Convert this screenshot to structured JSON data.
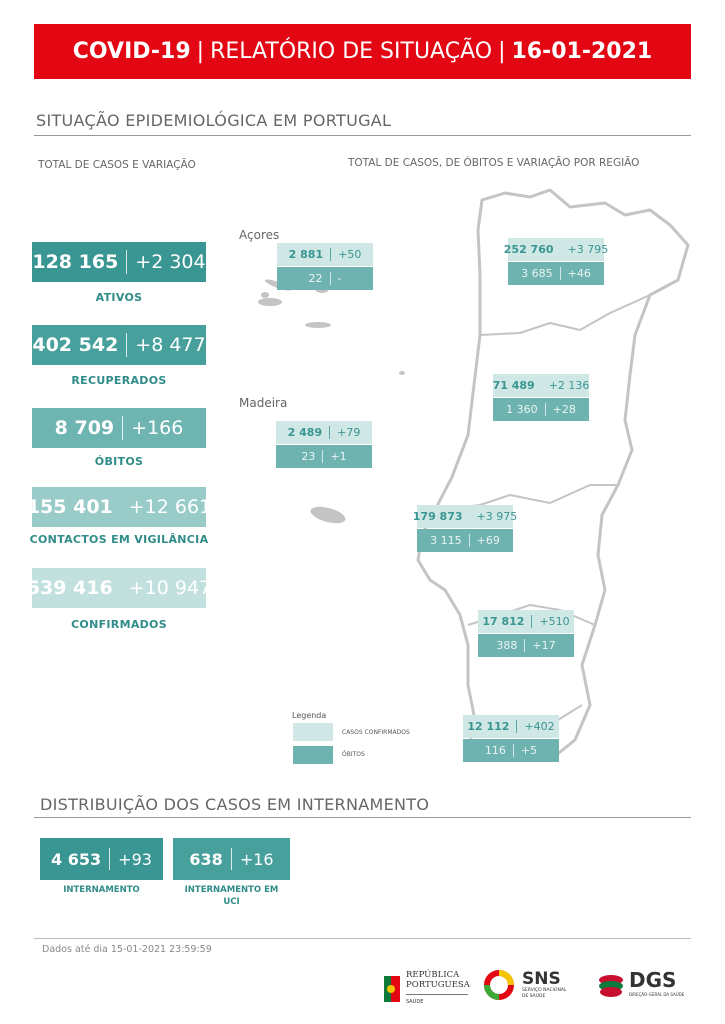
{
  "header": {
    "title_bold": "COVID-19",
    "title_middle": "RELATÓRIO DE SITUAÇÃO",
    "date": "16-01-2021",
    "separator": "|",
    "color": "#e30613"
  },
  "section1": {
    "title": "SITUAÇÃO EPIDEMIOLÓGICA EM PORTUGAL",
    "left_subtitle": "TOTAL DE CASOS E VARIAÇÃO",
    "right_subtitle": "TOTAL DE CASOS, DE ÓBITOS E VARIAÇÃO POR REGIÃO"
  },
  "kpis": [
    {
      "value": "128 165",
      "delta": "+2 304",
      "label": "ATIVOS",
      "color": "#3a9692"
    },
    {
      "value": "402 542",
      "delta": "+8 477",
      "label": "RECUPERADOS",
      "color": "#47a09c"
    },
    {
      "value": "8 709",
      "delta": "+166",
      "label": "ÓBITOS",
      "color": "#6eb5b2"
    },
    {
      "value": "155 401",
      "delta": "+12 661",
      "label": "CONTACTOS EM VIGILÂNCIA",
      "color": "#99cbc8"
    },
    {
      "value": "539 416",
      "delta": "+10 947",
      "label": "CONFIRMADOS",
      "color": "#c2e0de"
    }
  ],
  "regions": [
    {
      "name": "Açores",
      "cases": "2 881",
      "cases_delta": "+50",
      "deaths": "22",
      "deaths_delta": "-"
    },
    {
      "name": "Madeira",
      "cases": "2 489",
      "cases_delta": "+79",
      "deaths": "23",
      "deaths_delta": "+1"
    },
    {
      "cases": "252 760",
      "cases_delta": "+3 795",
      "deaths": "3 685",
      "deaths_delta": "+46"
    },
    {
      "cases": "71 489",
      "cases_delta": "+2 136",
      "deaths": "1 360",
      "deaths_delta": "+28"
    },
    {
      "cases": "179 873",
      "cases_delta": "+3 975",
      "deaths": "3 115",
      "deaths_delta": "+69"
    },
    {
      "cases": "17 812",
      "cases_delta": "+510",
      "deaths": "388",
      "deaths_delta": "+17"
    },
    {
      "cases": "12 112",
      "cases_delta": "+402",
      "deaths": "116",
      "deaths_delta": "+5"
    }
  ],
  "legend": {
    "title": "Legenda",
    "confirmed": "CASOS CONFIRMADOS",
    "deaths": "ÓBITOS",
    "confirmed_color": "#cfe7e5",
    "deaths_color": "#6fb3b0"
  },
  "section2": {
    "title": "DISTRIBUIÇÃO DOS CASOS EM INTERNAMENTO"
  },
  "hospital": [
    {
      "value": "4 653",
      "delta": "+93",
      "label": "INTERNAMENTO"
    },
    {
      "value": "638",
      "delta": "+16",
      "label": "INTERNAMENTO EM UCI"
    }
  ],
  "footer": {
    "note": "Dados até dia 15-01-2021 23:59:59",
    "logos": [
      {
        "name": "REPÚBLICA PORTUGUESA",
        "sub": "SAÚDE"
      },
      {
        "name": "SNS",
        "sub": "SERVIÇO NACIONAL DE SAÚDE"
      },
      {
        "name": "DGS",
        "sub": "DIREÇÃO-GERAL DA SAÚDE"
      }
    ]
  }
}
